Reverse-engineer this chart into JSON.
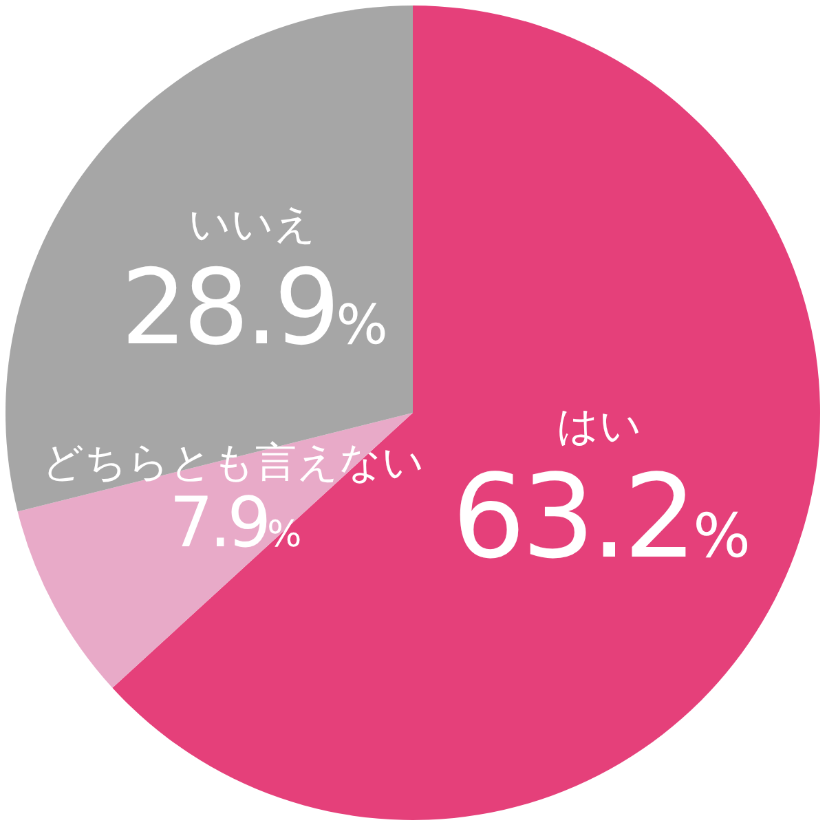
{
  "chart_data": {
    "type": "pie",
    "categories": [
      "はい",
      "どちらとも言えない",
      "いいえ"
    ],
    "values": [
      63.2,
      7.9,
      28.9
    ],
    "colors": [
      "#e5407a",
      "#e8aac8",
      "#a6a6a6"
    ],
    "value_labels": [
      "63.2%",
      "7.9%",
      "28.9%"
    ]
  }
}
